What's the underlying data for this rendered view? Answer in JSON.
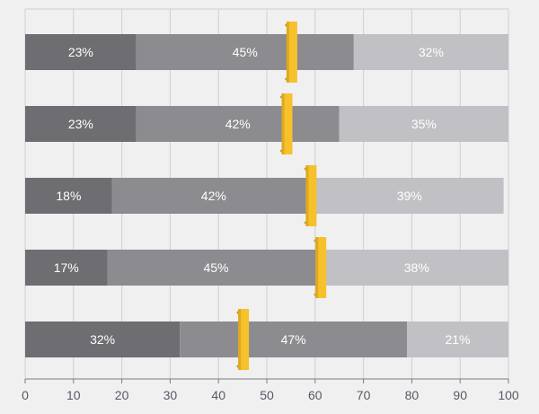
{
  "chart_data": {
    "type": "bar",
    "orientation": "horizontal",
    "stacked": true,
    "xlim": [
      0,
      100
    ],
    "x_ticks": [
      0,
      10,
      20,
      30,
      40,
      50,
      60,
      70,
      80,
      90,
      100
    ],
    "grid": true,
    "rows": [
      {
        "segments": [
          23,
          45,
          32
        ],
        "labels": [
          "23%",
          "45%",
          "32%"
        ],
        "marker": 55
      },
      {
        "segments": [
          23,
          42,
          35
        ],
        "labels": [
          "23%",
          "42%",
          "35%"
        ],
        "marker": 54
      },
      {
        "segments": [
          18,
          42,
          39
        ],
        "labels": [
          "18%",
          "42%",
          "39%"
        ],
        "marker": 59
      },
      {
        "segments": [
          17,
          45,
          38
        ],
        "labels": [
          "17%",
          "45%",
          "38%"
        ],
        "marker": 61
      },
      {
        "segments": [
          32,
          47,
          21
        ],
        "labels": [
          "32%",
          "47%",
          "21%"
        ],
        "marker": 45
      }
    ],
    "colors": {
      "segments": [
        "#6e6d72",
        "#8c8b8f",
        "#c1c0c4"
      ],
      "marker": "#f7c12c",
      "marker_shadow": "#c9951a",
      "grid": "#cfcfd2",
      "axis": "#7c7c80"
    }
  }
}
